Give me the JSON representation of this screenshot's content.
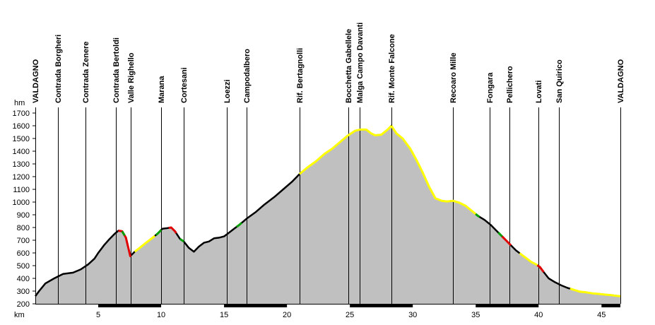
{
  "chart_data": {
    "type": "area",
    "ylabel": "hm",
    "xlabel": "km",
    "xlim": [
      0,
      46.5
    ],
    "ylim": [
      200,
      1700
    ],
    "yticks": [
      200,
      300,
      400,
      500,
      600,
      700,
      800,
      900,
      1000,
      1100,
      1200,
      1300,
      1400,
      1500,
      1600,
      1700
    ],
    "xticks": [
      5,
      10,
      15,
      20,
      25,
      30,
      35,
      40,
      45
    ],
    "grid": false,
    "colors": {
      "fill": "#c0c0c0",
      "profile": "#000000",
      "yellow": "#ffff00",
      "red": "#e00000",
      "green": "#00a000",
      "marker_line": "#000000"
    },
    "places": [
      {
        "name": "VALDAGNO",
        "km": 0
      },
      {
        "name": "Contrada Borgheri",
        "km": 1.8
      },
      {
        "name": "Contrada Zenere",
        "km": 4.0
      },
      {
        "name": "Contrada Bertoldi",
        "km": 6.4
      },
      {
        "name": "Valle Righello",
        "km": 7.6
      },
      {
        "name": "Marana",
        "km": 10.0
      },
      {
        "name": "Cortesani",
        "km": 11.8
      },
      {
        "name": "Loezzi",
        "km": 15.2
      },
      {
        "name": "Campodalbero",
        "km": 16.8
      },
      {
        "name": "Rif. Bertagnolli",
        "km": 21.0
      },
      {
        "name": "Bocchetta Gabellele",
        "km": 24.9
      },
      {
        "name": "Malga Campo Davanti",
        "km": 25.8
      },
      {
        "name": "Rif. Monte Falcone",
        "km": 28.3
      },
      {
        "name": "Recoaro Mille",
        "km": 33.2
      },
      {
        "name": "Fongara",
        "km": 36.1
      },
      {
        "name": "Pellichero",
        "km": 37.7
      },
      {
        "name": "Lovati",
        "km": 40.0
      },
      {
        "name": "San Quirico",
        "km": 41.6
      },
      {
        "name": "VALDAGNO",
        "km": 46.5
      }
    ],
    "profile": {
      "x": [
        0,
        0.3,
        0.8,
        1.5,
        2.2,
        3.0,
        3.6,
        4.2,
        4.7,
        5.0,
        5.5,
        5.9,
        6.3,
        6.6,
        6.9,
        7.2,
        7.55,
        7.9,
        8.3,
        8.8,
        9.2,
        9.7,
        10.1,
        10.5,
        10.8,
        11.1,
        11.5,
        11.8,
        12.2,
        12.6,
        13.0,
        13.4,
        13.8,
        14.2,
        14.6,
        15.0,
        15.4,
        15.8,
        16.2,
        16.8,
        17.5,
        18.2,
        19.0,
        19.7,
        20.4,
        21.0,
        21.6,
        22.3,
        23.0,
        23.6,
        24.2,
        24.8,
        25.4,
        25.8,
        26.3,
        26.7,
        27.0,
        27.5,
        28.0,
        28.3,
        28.7,
        29.2,
        29.8,
        30.3,
        30.8,
        31.3,
        31.8,
        32.3,
        32.7,
        33.2,
        33.7,
        34.2,
        34.7,
        35.2,
        35.7,
        36.2,
        36.6,
        37.0,
        37.4,
        37.8,
        38.2,
        38.6,
        39.0,
        39.4,
        39.8,
        40.1,
        40.4,
        40.8,
        41.3,
        41.8,
        42.3,
        42.8,
        43.3,
        43.8,
        44.3,
        44.8,
        45.3,
        45.8,
        46.2,
        46.5
      ],
      "y": [
        260,
        300,
        360,
        400,
        435,
        445,
        470,
        510,
        555,
        600,
        665,
        710,
        750,
        775,
        770,
        720,
        575,
        610,
        640,
        680,
        710,
        750,
        790,
        795,
        800,
        770,
        710,
        690,
        640,
        610,
        650,
        680,
        690,
        715,
        720,
        730,
        760,
        790,
        820,
        870,
        920,
        980,
        1040,
        1100,
        1160,
        1220,
        1270,
        1320,
        1380,
        1420,
        1470,
        1520,
        1560,
        1570,
        1570,
        1540,
        1525,
        1530,
        1570,
        1600,
        1540,
        1500,
        1420,
        1330,
        1230,
        1120,
        1030,
        1010,
        1005,
        1010,
        995,
        970,
        930,
        890,
        860,
        820,
        780,
        740,
        700,
        660,
        620,
        590,
        560,
        530,
        510,
        490,
        450,
        400,
        370,
        345,
        325,
        310,
        295,
        290,
        282,
        278,
        272,
        268,
        262,
        260
      ]
    },
    "highlights": [
      {
        "color": "yellow",
        "x": [
          21.0,
          28.3
        ]
      },
      {
        "color": "yellow",
        "x": [
          28.3,
          33.0
        ]
      },
      {
        "color": "yellow",
        "x": [
          33.0,
          35.0
        ]
      },
      {
        "color": "yellow",
        "x": [
          38.5,
          39.9
        ]
      },
      {
        "color": "yellow",
        "x": [
          42.5,
          46.5
        ]
      },
      {
        "color": "yellow",
        "x": [
          7.9,
          9.5
        ]
      },
      {
        "color": "red",
        "x": [
          6.6,
          7.6
        ]
      },
      {
        "color": "red",
        "x": [
          10.6,
          11.2
        ]
      },
      {
        "color": "red",
        "x": [
          37.1,
          37.8
        ]
      },
      {
        "color": "red",
        "x": [
          39.9,
          40.4
        ]
      },
      {
        "color": "green",
        "x": [
          6.9,
          7.1
        ]
      },
      {
        "color": "green",
        "x": [
          9.6,
          10.0
        ]
      },
      {
        "color": "green",
        "x": [
          11.5,
          11.8
        ]
      },
      {
        "color": "green",
        "x": [
          16.0,
          16.4
        ]
      },
      {
        "color": "green",
        "x": [
          35.0,
          35.3
        ]
      },
      {
        "color": "green",
        "x": [
          36.8,
          37.1
        ]
      }
    ],
    "km_bar_segments": [
      [
        5,
        10
      ],
      [
        15,
        20
      ],
      [
        25,
        30
      ],
      [
        35,
        40
      ],
      [
        45,
        46.5
      ]
    ]
  }
}
